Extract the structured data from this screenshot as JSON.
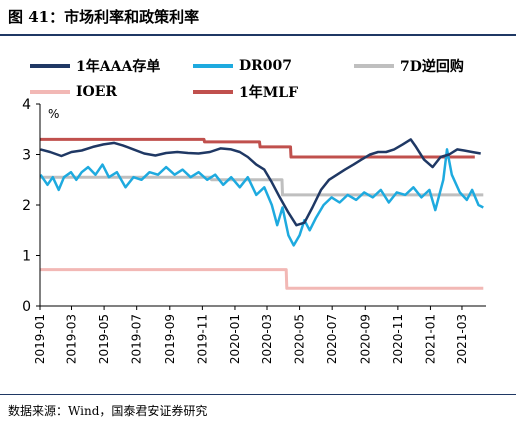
{
  "header": {
    "title": "图 41：市场利率和政策利率"
  },
  "source": "数据来源：Wind，国泰君安证券研究",
  "chart_data": {
    "type": "line",
    "ylabel": "%",
    "ylim": [
      0,
      4
    ],
    "yticks": [
      "0",
      "1",
      "2",
      "3",
      "4"
    ],
    "xlim": [
      "2019-01-01",
      "2021-04-15"
    ],
    "xticks": [
      "2019-01",
      "2019-03",
      "2019-05",
      "2019-07",
      "2019-09",
      "2019-11",
      "2020-01",
      "2020-03",
      "2020-05",
      "2020-07",
      "2020-09",
      "2020-11",
      "2021-01",
      "2021-03"
    ],
    "legend": [
      "1年AAA存单",
      "DR007",
      "7D逆回购",
      "IOER",
      "1年MLF"
    ],
    "series": [
      {
        "name": "1年AAA存单",
        "color": "#1f3864",
        "points": [
          [
            "2019-01-02",
            3.1
          ],
          [
            "2019-01-20",
            3.05
          ],
          [
            "2019-02-10",
            2.97
          ],
          [
            "2019-03-01",
            3.05
          ],
          [
            "2019-03-20",
            3.08
          ],
          [
            "2019-04-10",
            3.15
          ],
          [
            "2019-04-30",
            3.2
          ],
          [
            "2019-05-20",
            3.23
          ],
          [
            "2019-06-05",
            3.18
          ],
          [
            "2019-06-25",
            3.1
          ],
          [
            "2019-07-15",
            3.02
          ],
          [
            "2019-08-05",
            2.98
          ],
          [
            "2019-08-25",
            3.03
          ],
          [
            "2019-09-15",
            3.05
          ],
          [
            "2019-10-05",
            3.03
          ],
          [
            "2019-10-25",
            3.02
          ],
          [
            "2019-11-15",
            3.05
          ],
          [
            "2019-12-05",
            3.12
          ],
          [
            "2019-12-25",
            3.1
          ],
          [
            "2020-01-10",
            3.05
          ],
          [
            "2020-01-25",
            2.95
          ],
          [
            "2020-02-10",
            2.8
          ],
          [
            "2020-02-25",
            2.7
          ],
          [
            "2020-03-10",
            2.45
          ],
          [
            "2020-03-25",
            2.15
          ],
          [
            "2020-04-10",
            1.85
          ],
          [
            "2020-04-25",
            1.6
          ],
          [
            "2020-05-10",
            1.65
          ],
          [
            "2020-05-25",
            1.95
          ],
          [
            "2020-06-10",
            2.3
          ],
          [
            "2020-06-25",
            2.5
          ],
          [
            "2020-07-10",
            2.6
          ],
          [
            "2020-07-25",
            2.7
          ],
          [
            "2020-08-10",
            2.8
          ],
          [
            "2020-08-25",
            2.9
          ],
          [
            "2020-09-10",
            3.0
          ],
          [
            "2020-09-25",
            3.05
          ],
          [
            "2020-10-10",
            3.05
          ],
          [
            "2020-10-25",
            3.1
          ],
          [
            "2020-11-10",
            3.2
          ],
          [
            "2020-11-25",
            3.3
          ],
          [
            "2020-12-05",
            3.15
          ],
          [
            "2020-12-20",
            2.9
          ],
          [
            "2021-01-05",
            2.75
          ],
          [
            "2021-01-20",
            2.95
          ],
          [
            "2021-02-05",
            3.0
          ],
          [
            "2021-02-20",
            3.1
          ],
          [
            "2021-03-05",
            3.08
          ],
          [
            "2021-03-20",
            3.05
          ],
          [
            "2021-04-05",
            3.02
          ]
        ]
      },
      {
        "name": "DR007",
        "color": "#1eaadf",
        "points": [
          [
            "2019-01-02",
            2.6
          ],
          [
            "2019-01-15",
            2.4
          ],
          [
            "2019-01-25",
            2.55
          ],
          [
            "2019-02-05",
            2.3
          ],
          [
            "2019-02-15",
            2.55
          ],
          [
            "2019-02-28",
            2.65
          ],
          [
            "2019-03-10",
            2.5
          ],
          [
            "2019-03-20",
            2.65
          ],
          [
            "2019-04-01",
            2.75
          ],
          [
            "2019-04-15",
            2.6
          ],
          [
            "2019-04-28",
            2.8
          ],
          [
            "2019-05-10",
            2.55
          ],
          [
            "2019-05-25",
            2.65
          ],
          [
            "2019-06-10",
            2.35
          ],
          [
            "2019-06-25",
            2.55
          ],
          [
            "2019-07-10",
            2.5
          ],
          [
            "2019-07-25",
            2.65
          ],
          [
            "2019-08-10",
            2.6
          ],
          [
            "2019-08-25",
            2.75
          ],
          [
            "2019-09-10",
            2.6
          ],
          [
            "2019-09-25",
            2.7
          ],
          [
            "2019-10-10",
            2.55
          ],
          [
            "2019-10-25",
            2.65
          ],
          [
            "2019-11-10",
            2.5
          ],
          [
            "2019-11-25",
            2.6
          ],
          [
            "2019-12-10",
            2.4
          ],
          [
            "2019-12-25",
            2.55
          ],
          [
            "2020-01-10",
            2.35
          ],
          [
            "2020-01-25",
            2.55
          ],
          [
            "2020-02-10",
            2.2
          ],
          [
            "2020-02-25",
            2.35
          ],
          [
            "2020-03-10",
            2.0
          ],
          [
            "2020-03-20",
            1.6
          ],
          [
            "2020-03-30",
            1.95
          ],
          [
            "2020-04-10",
            1.4
          ],
          [
            "2020-04-20",
            1.2
          ],
          [
            "2020-05-01",
            1.4
          ],
          [
            "2020-05-10",
            1.7
          ],
          [
            "2020-05-20",
            1.5
          ],
          [
            "2020-06-01",
            1.75
          ],
          [
            "2020-06-15",
            2.0
          ],
          [
            "2020-06-30",
            2.15
          ],
          [
            "2020-07-15",
            2.05
          ],
          [
            "2020-07-30",
            2.2
          ],
          [
            "2020-08-15",
            2.1
          ],
          [
            "2020-08-30",
            2.25
          ],
          [
            "2020-09-15",
            2.15
          ],
          [
            "2020-09-30",
            2.3
          ],
          [
            "2020-10-15",
            2.05
          ],
          [
            "2020-10-30",
            2.25
          ],
          [
            "2020-11-15",
            2.2
          ],
          [
            "2020-11-30",
            2.35
          ],
          [
            "2020-12-15",
            2.15
          ],
          [
            "2020-12-30",
            2.3
          ],
          [
            "2021-01-10",
            1.9
          ],
          [
            "2021-01-25",
            2.5
          ],
          [
            "2021-02-01",
            3.1
          ],
          [
            "2021-02-10",
            2.6
          ],
          [
            "2021-02-25",
            2.25
          ],
          [
            "2021-03-10",
            2.1
          ],
          [
            "2021-03-20",
            2.3
          ],
          [
            "2021-04-01",
            2.0
          ],
          [
            "2021-04-10",
            1.95
          ]
        ]
      },
      {
        "name": "7D逆回购",
        "color": "#bfbfbf",
        "points": [
          [
            "2019-01-01",
            2.55
          ],
          [
            "2019-11-17",
            2.55
          ],
          [
            "2019-11-18",
            2.5
          ],
          [
            "2020-03-29",
            2.5
          ],
          [
            "2020-03-30",
            2.2
          ],
          [
            "2021-04-10",
            2.2
          ]
        ]
      },
      {
        "name": "IOER",
        "color": "#f2b8b5",
        "points": [
          [
            "2019-01-01",
            0.72
          ],
          [
            "2020-04-06",
            0.72
          ],
          [
            "2020-04-07",
            0.35
          ],
          [
            "2021-04-10",
            0.35
          ]
        ]
      },
      {
        "name": "1年MLF",
        "color": "#c0504d",
        "points": [
          [
            "2019-01-01",
            3.3
          ],
          [
            "2019-11-04",
            3.3
          ],
          [
            "2019-11-05",
            3.25
          ],
          [
            "2020-02-16",
            3.25
          ],
          [
            "2020-02-17",
            3.15
          ],
          [
            "2020-04-14",
            3.15
          ],
          [
            "2020-04-15",
            2.95
          ],
          [
            "2021-03-25",
            2.95
          ]
        ]
      }
    ]
  }
}
